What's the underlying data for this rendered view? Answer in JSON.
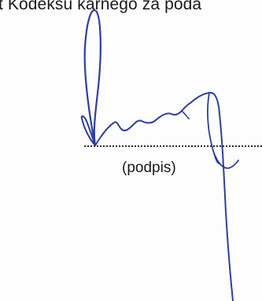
{
  "document": {
    "header_fragment": "t Kodeksu karnego za poda",
    "signature_caption": "(podpis)"
  },
  "colors": {
    "text": "#1a1a1a",
    "ink": "#2e3f9a",
    "paper": "#fdfdfd"
  }
}
